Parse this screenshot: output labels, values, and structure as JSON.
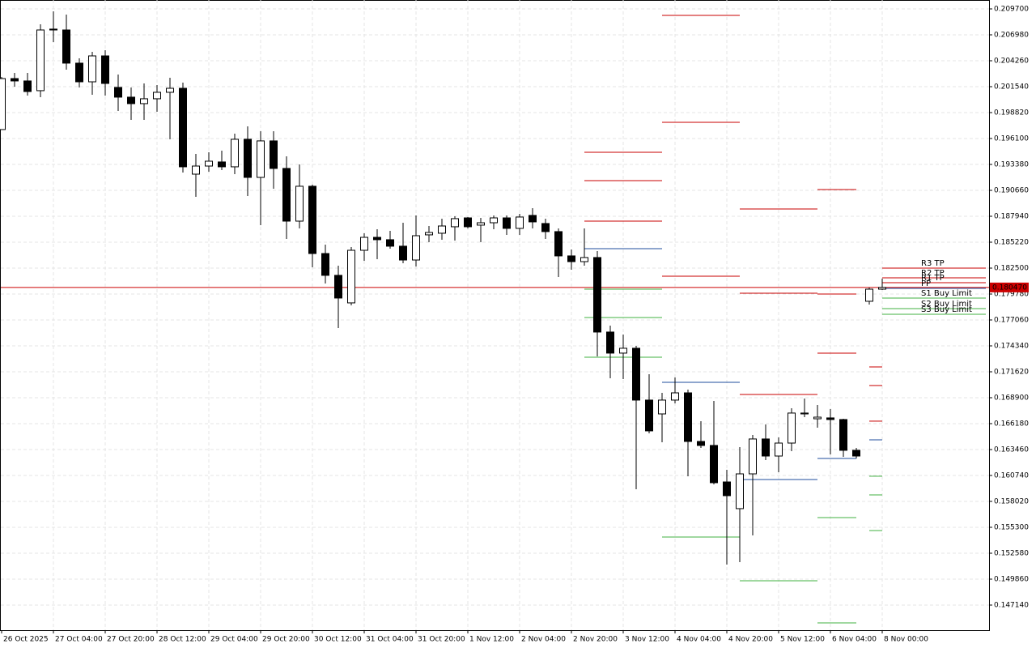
{
  "chart_data": {
    "type": "candlestick",
    "up_color": "#ffffff",
    "down_color": "#000000",
    "grid": true,
    "categories": [
      "26 Oct 2025",
      null,
      null,
      null,
      "27 Oct 04:00",
      null,
      null,
      null,
      "27 Oct 20:00",
      null,
      null,
      null,
      "28 Oct 12:00",
      null,
      null,
      null,
      "29 Oct 04:00",
      null,
      null,
      null,
      "29 Oct 20:00",
      null,
      null,
      null,
      "30 Oct 12:00",
      null,
      null,
      null,
      "31 Oct 04:00",
      null,
      null,
      null,
      "31 Oct 20:00",
      null,
      null,
      null,
      "1 Nov 12:00",
      null,
      null,
      null,
      "2 Nov 04:00",
      null,
      null,
      null,
      "2 Nov 20:00",
      null,
      null,
      null,
      "3 Nov 12:00",
      null,
      null,
      null,
      "4 Nov 04:00",
      null,
      null,
      null,
      "4 Nov 20:00",
      null,
      null,
      null,
      "5 Nov 12:00",
      null,
      null,
      null,
      "6 Nov 04:00",
      null,
      null,
      null,
      "8 Nov 00:00"
    ],
    "open": [
      0.19704,
      0.20239,
      0.20214,
      0.20112,
      0.20758,
      0.20749,
      0.20401,
      0.20205,
      0.20477,
      0.20146,
      0.20044,
      0.19976,
      0.20027,
      0.20095,
      0.20137,
      0.19236,
      0.19321,
      0.19364,
      0.19313,
      0.19602,
      0.19202,
      0.19585,
      0.19296,
      0.18743,
      0.19109,
      0.18403,
      0.18174,
      0.17885,
      0.18437,
      0.18573,
      0.18548,
      0.1848,
      0.18335,
      0.18599,
      0.18616,
      0.18684,
      0.18777,
      0.18701,
      0.18726,
      0.18777,
      0.18667,
      0.18803,
      0.18718,
      0.18633,
      0.18378,
      0.18318,
      0.18361,
      0.17579,
      0.17358,
      0.17409,
      0.16865,
      0.1672,
      0.16865,
      0.16941,
      0.16431,
      0.16389,
      0.16006,
      0.15726,
      0.16091,
      0.16457,
      0.16278,
      0.16414,
      0.1672,
      0.16669,
      0.16678,
      0.16661,
      0.16338,
      0.17902,
      0.18029
    ],
    "high": [
      0.20256,
      0.20299,
      0.20299,
      0.20809,
      0.20945,
      0.20911,
      0.20452,
      0.2052,
      0.20537,
      0.20282,
      0.20146,
      0.20188,
      0.20171,
      0.20248,
      0.20197,
      0.19449,
      0.19466,
      0.19483,
      0.19661,
      0.19738,
      0.19687,
      0.19687,
      0.19423,
      0.19338,
      0.19126,
      0.18497,
      0.18276,
      0.18471,
      0.18616,
      0.18658,
      0.18641,
      0.18726,
      0.18803,
      0.18692,
      0.18769,
      0.18794,
      0.18786,
      0.18777,
      0.18803,
      0.18803,
      0.1882,
      0.18879,
      0.18769,
      0.18667,
      0.18446,
      0.18667,
      0.18429,
      0.17647,
      0.17553,
      0.17434,
      0.17137,
      0.16941,
      0.17103,
      0.16975,
      0.16644,
      0.16856,
      0.16134,
      0.16372,
      0.16499,
      0.1661,
      0.16474,
      0.1678,
      0.16882,
      0.16814,
      0.16771,
      0.16669,
      0.16363,
      0.18046,
      0.1814
    ],
    "low": [
      0.19704,
      0.20154,
      0.20061,
      0.20044,
      0.20622,
      0.20333,
      0.20146,
      0.20069,
      0.20061,
      0.19899,
      0.19806,
      0.19806,
      0.19891,
      0.19602,
      0.19253,
      0.18998,
      0.19262,
      0.19279,
      0.19236,
      0.19007,
      0.18701,
      0.19083,
      0.18556,
      0.18667,
      0.18259,
      0.18089,
      0.17621,
      0.17859,
      0.18327,
      0.18344,
      0.18454,
      0.18301,
      0.18267,
      0.18522,
      0.18548,
      0.18539,
      0.18667,
      0.18522,
      0.18658,
      0.18599,
      0.18599,
      0.18667,
      0.18556,
      0.18157,
      0.18233,
      0.18276,
      0.17324,
      0.17094,
      0.17086,
      0.1593,
      0.16516,
      0.16423,
      0.1683,
      0.16066,
      0.16363,
      0.1598,
      0.15139,
      0.15165,
      0.15445,
      0.16236,
      0.16108,
      0.16329,
      0.16686,
      0.16576,
      0.16295,
      0.1627,
      0.16253,
      0.17868,
      0.18021
    ],
    "close": [
      0.20239,
      0.20214,
      0.20103,
      0.20749,
      0.20749,
      0.20401,
      0.20205,
      0.20477,
      0.20188,
      0.20044,
      0.19976,
      0.20027,
      0.20095,
      0.20137,
      0.19313,
      0.19321,
      0.19372,
      0.19313,
      0.19602,
      0.19202,
      0.19585,
      0.19296,
      0.18743,
      0.19109,
      0.18403,
      0.18174,
      0.17936,
      0.18437,
      0.18573,
      0.18548,
      0.1848,
      0.18335,
      0.1859,
      0.18624,
      0.18692,
      0.18769,
      0.18684,
      0.18726,
      0.18777,
      0.18667,
      0.18786,
      0.18735,
      0.18633,
      0.18378,
      0.18318,
      0.18361,
      0.17579,
      0.17358,
      0.17409,
      0.16865,
      0.16542,
      0.16865,
      0.16941,
      0.16431,
      0.16389,
      0.15998,
      0.15862,
      0.16091,
      0.16457,
      0.16278,
      0.16414,
      0.16729,
      0.16729,
      0.16686,
      0.16661,
      0.16338,
      0.16278,
      0.18029,
      0.18047
    ],
    "ylim": [
      0.144505,
      0.210635
    ],
    "yticks": [
      {
        "value": 0.2097,
        "label": "0.209700"
      },
      {
        "value": 0.20698,
        "label": "0.206980"
      },
      {
        "value": 0.20426,
        "label": "0.204260"
      },
      {
        "value": 0.20154,
        "label": "0.201540"
      },
      {
        "value": 0.19882,
        "label": "0.198820"
      },
      {
        "value": 0.1961,
        "label": "0.196100"
      },
      {
        "value": 0.19338,
        "label": "0.193380"
      },
      {
        "value": 0.19066,
        "label": "0.190660"
      },
      {
        "value": 0.18794,
        "label": "0.187940"
      },
      {
        "value": 0.18522,
        "label": "0.185220"
      },
      {
        "value": 0.1825,
        "label": "0.182500"
      },
      {
        "value": 0.17978,
        "label": "0.179780"
      },
      {
        "value": 0.17706,
        "label": "0.177060"
      },
      {
        "value": 0.17434,
        "label": "0.174340"
      },
      {
        "value": 0.17162,
        "label": "0.171620"
      },
      {
        "value": 0.1689,
        "label": "0.168900"
      },
      {
        "value": 0.16618,
        "label": "0.166180"
      },
      {
        "value": 0.16346,
        "label": "0.163460"
      },
      {
        "value": 0.16074,
        "label": "0.160740"
      },
      {
        "value": 0.15802,
        "label": "0.158020"
      },
      {
        "value": 0.1553,
        "label": "0.155300"
      },
      {
        "value": 0.15258,
        "label": "0.152580"
      },
      {
        "value": 0.14986,
        "label": "0.149860"
      },
      {
        "value": 0.14714,
        "label": "0.147140"
      }
    ],
    "current_price": {
      "value": 0.18047,
      "label": "0.180470"
    },
    "current_price_color": "#cc0000",
    "level_names": [
      "R3 TP",
      "R2 TP",
      "R1 TP",
      "PP",
      "S1 Buy Limit",
      "S2 Buy Limit",
      "S3 Buy Limit"
    ],
    "level_colors": [
      "#c80000",
      "#c80000",
      "#c80000",
      "#1f4e9c",
      "#40b040",
      "#40b040",
      "#40b040"
    ],
    "level_periods": [
      [
        0.19466,
        0.19168,
        0.18743,
        0.18454,
        0.18029,
        0.17732,
        0.17315
      ],
      [
        0.20902,
        0.1978,
        0.18165,
        0.17052,
        0.15428,
        null,
        null
      ],
      [
        0.18871,
        0.17987,
        0.16924,
        0.16032,
        0.14969,
        null,
        null
      ],
      [
        0.19075,
        0.17978,
        0.17358,
        0.16253,
        0.15632,
        0.14527,
        null
      ],
      [
        0.17213,
        0.17018,
        0.16644,
        0.16448,
        0.16066,
        0.1587,
        0.15496
      ],
      [
        0.1825,
        0.18148,
        0.18097,
        0.18038,
        0.17936,
        0.17825,
        0.17766
      ]
    ]
  }
}
